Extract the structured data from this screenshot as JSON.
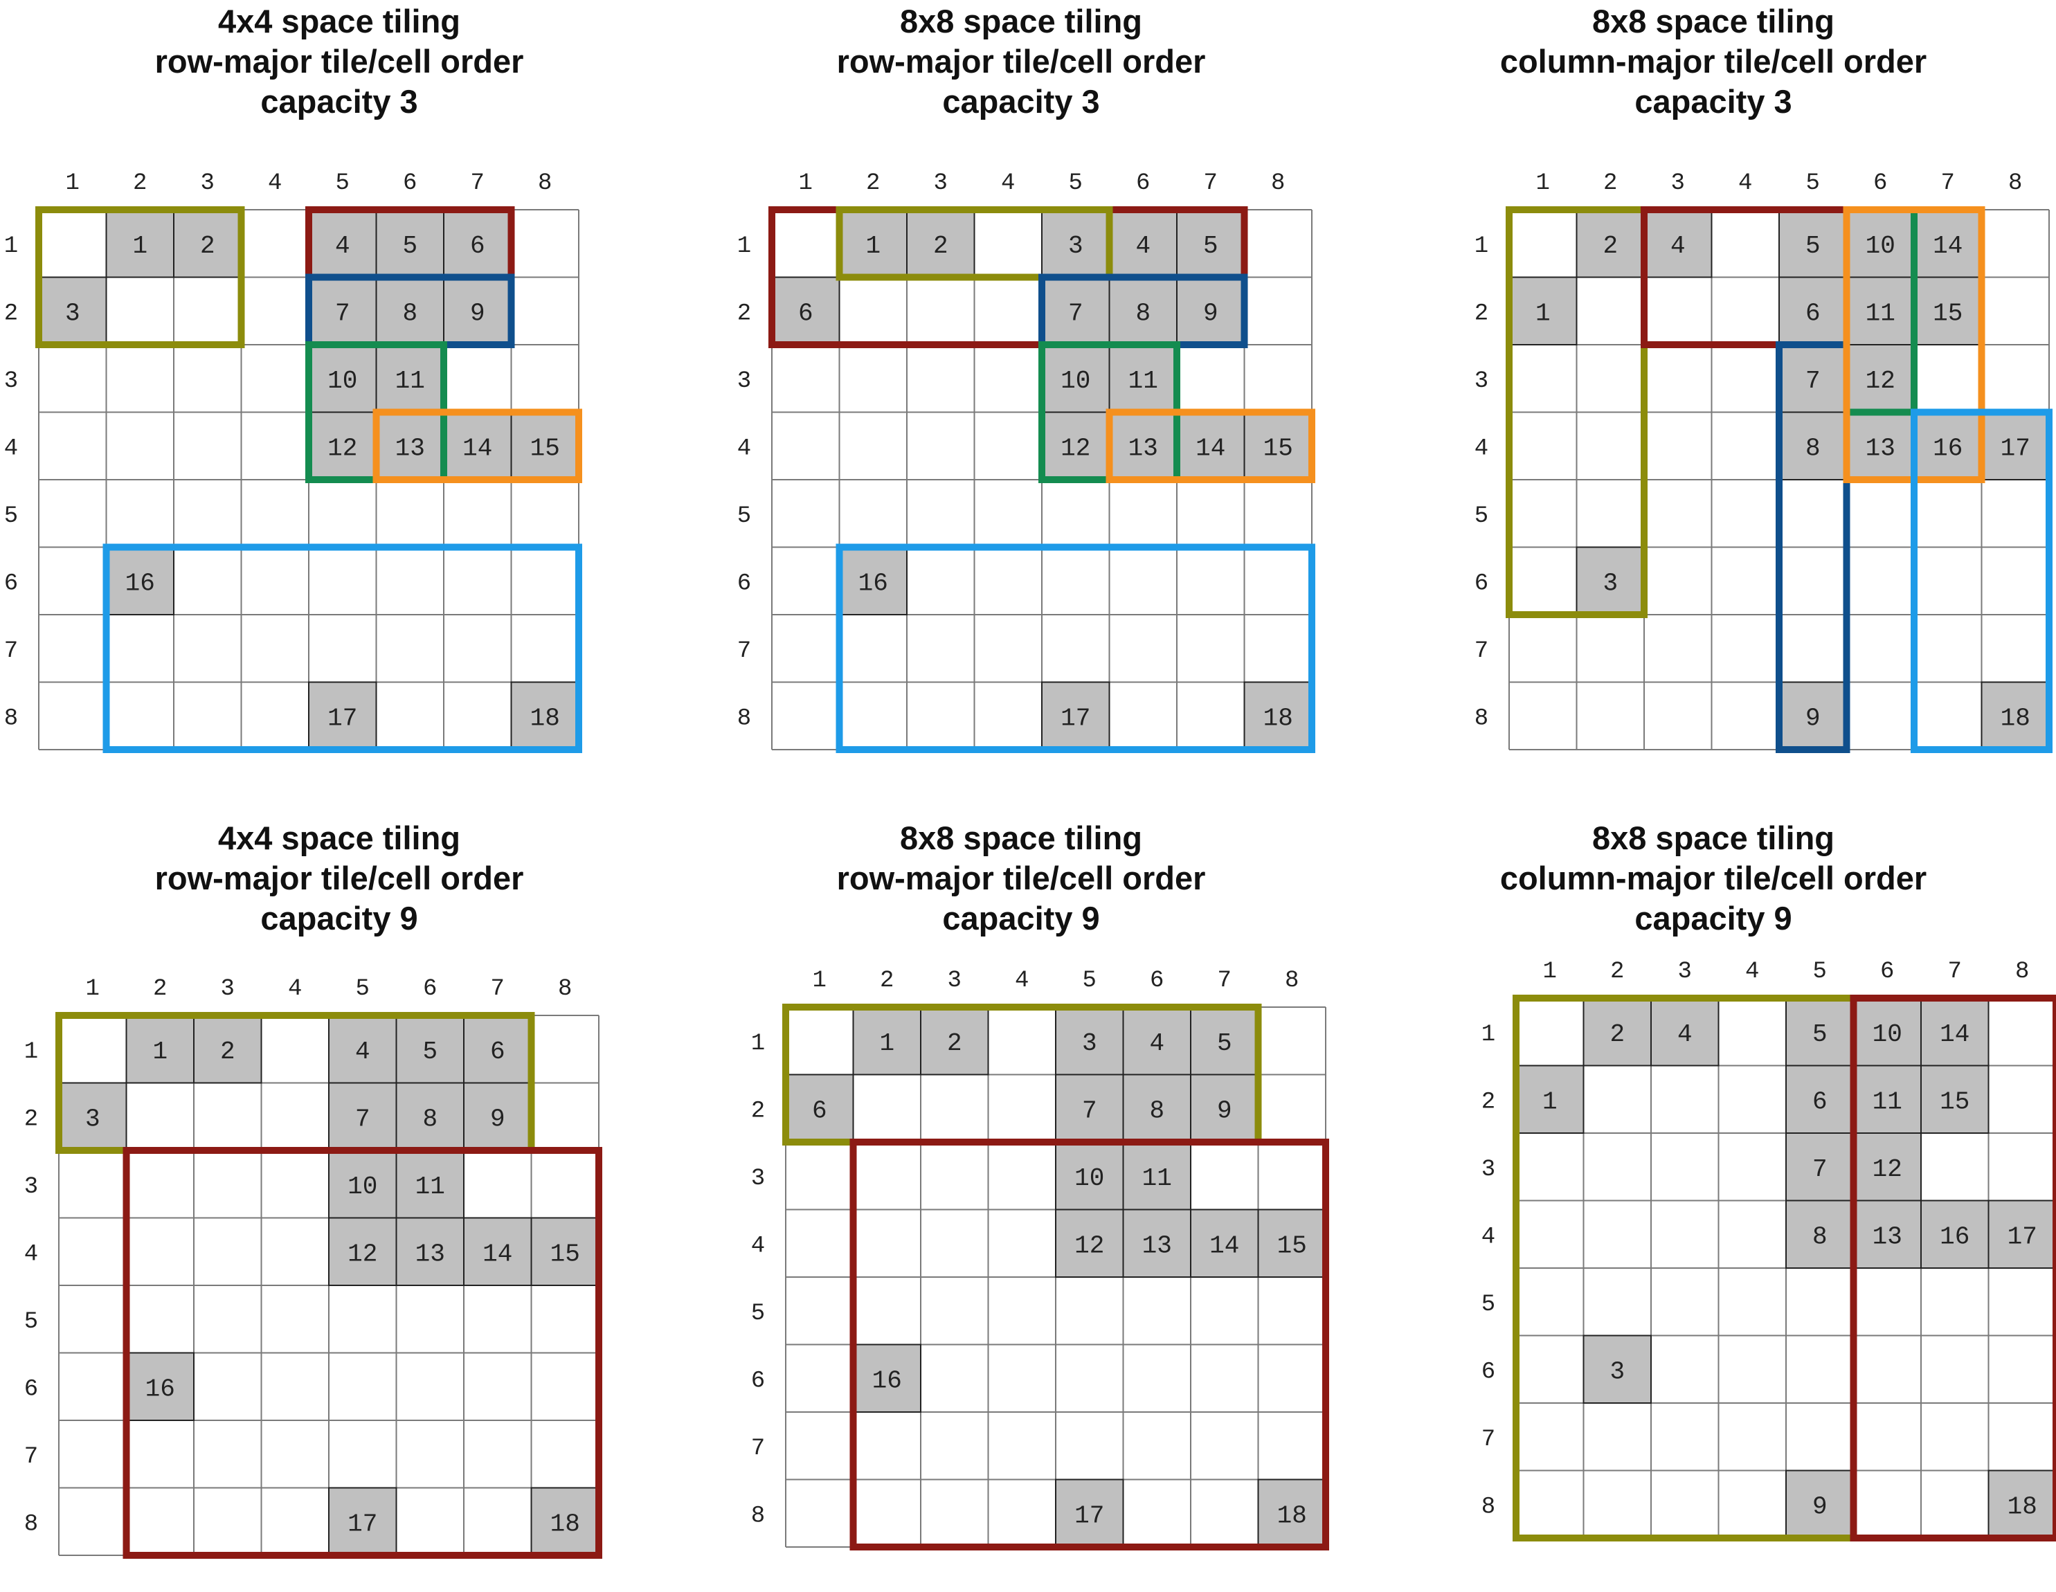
{
  "figure": {
    "colors": {
      "olive": "#8c8c0c",
      "dark_red": "#8c1a14",
      "dark_blue": "#0f4f8c",
      "green": "#148c50",
      "orange": "#f5901e",
      "light_blue": "#1e9be8",
      "cell_fill": "#c0c0c0",
      "grid": "#7a7a7a"
    },
    "panels": [
      {
        "title": [
          "4x4 space tiling",
          "row-major tile/cell order",
          "capacity 3"
        ],
        "col_labels": [
          "1",
          "2",
          "3",
          "4",
          "5",
          "6",
          "7",
          "8"
        ],
        "row_labels": [
          "1",
          "2",
          "3",
          "4",
          "5",
          "6",
          "7",
          "8"
        ],
        "cells": [
          {
            "row": 1,
            "col": 2,
            "label": "1"
          },
          {
            "row": 1,
            "col": 3,
            "label": "2"
          },
          {
            "row": 2,
            "col": 1,
            "label": "3"
          },
          {
            "row": 1,
            "col": 5,
            "label": "4"
          },
          {
            "row": 1,
            "col": 6,
            "label": "5"
          },
          {
            "row": 1,
            "col": 7,
            "label": "6"
          },
          {
            "row": 2,
            "col": 5,
            "label": "7"
          },
          {
            "row": 2,
            "col": 6,
            "label": "8"
          },
          {
            "row": 2,
            "col": 7,
            "label": "9"
          },
          {
            "row": 3,
            "col": 5,
            "label": "10"
          },
          {
            "row": 3,
            "col": 6,
            "label": "11"
          },
          {
            "row": 4,
            "col": 5,
            "label": "12"
          },
          {
            "row": 4,
            "col": 6,
            "label": "13"
          },
          {
            "row": 4,
            "col": 7,
            "label": "14"
          },
          {
            "row": 4,
            "col": 8,
            "label": "15"
          },
          {
            "row": 6,
            "col": 2,
            "label": "16"
          },
          {
            "row": 8,
            "col": 5,
            "label": "17"
          },
          {
            "row": 8,
            "col": 8,
            "label": "18"
          }
        ],
        "tiles": [
          {
            "color": "olive",
            "rows": [
              1,
              2
            ],
            "cols": [
              1,
              3
            ]
          },
          {
            "color": "dark_red",
            "rows": [
              1,
              1
            ],
            "cols": [
              5,
              7
            ]
          },
          {
            "color": "dark_blue",
            "rows": [
              2,
              2
            ],
            "cols": [
              5,
              7
            ]
          },
          {
            "color": "green",
            "rows": [
              3,
              4
            ],
            "cols": [
              5,
              6
            ]
          },
          {
            "color": "orange",
            "rows": [
              4,
              4
            ],
            "cols": [
              6,
              8
            ]
          },
          {
            "color": "light_blue",
            "rows": [
              6,
              8
            ],
            "cols": [
              2,
              8
            ]
          }
        ]
      },
      {
        "title": [
          "8x8 space tiling",
          "row-major tile/cell order",
          "capacity 3"
        ],
        "col_labels": [
          "1",
          "2",
          "3",
          "4",
          "5",
          "6",
          "7",
          "8"
        ],
        "row_labels": [
          "1",
          "2",
          "3",
          "4",
          "5",
          "6",
          "7",
          "8"
        ],
        "cells": [
          {
            "row": 1,
            "col": 2,
            "label": "1"
          },
          {
            "row": 1,
            "col": 3,
            "label": "2"
          },
          {
            "row": 1,
            "col": 5,
            "label": "3"
          },
          {
            "row": 1,
            "col": 6,
            "label": "4"
          },
          {
            "row": 1,
            "col": 7,
            "label": "5"
          },
          {
            "row": 2,
            "col": 1,
            "label": "6"
          },
          {
            "row": 2,
            "col": 5,
            "label": "7"
          },
          {
            "row": 2,
            "col": 6,
            "label": "8"
          },
          {
            "row": 2,
            "col": 7,
            "label": "9"
          },
          {
            "row": 3,
            "col": 5,
            "label": "10"
          },
          {
            "row": 3,
            "col": 6,
            "label": "11"
          },
          {
            "row": 4,
            "col": 5,
            "label": "12"
          },
          {
            "row": 4,
            "col": 6,
            "label": "13"
          },
          {
            "row": 4,
            "col": 7,
            "label": "14"
          },
          {
            "row": 4,
            "col": 8,
            "label": "15"
          },
          {
            "row": 6,
            "col": 2,
            "label": "16"
          },
          {
            "row": 8,
            "col": 5,
            "label": "17"
          },
          {
            "row": 8,
            "col": 8,
            "label": "18"
          }
        ],
        "tiles": [
          {
            "color": "dark_red",
            "rows": [
              1,
              2
            ],
            "cols": [
              1,
              7
            ]
          },
          {
            "color": "olive",
            "rows": [
              1,
              1
            ],
            "cols": [
              2,
              5
            ]
          },
          {
            "color": "dark_blue",
            "rows": [
              2,
              2
            ],
            "cols": [
              5,
              7
            ]
          },
          {
            "color": "green",
            "rows": [
              3,
              4
            ],
            "cols": [
              5,
              6
            ]
          },
          {
            "color": "orange",
            "rows": [
              4,
              4
            ],
            "cols": [
              6,
              8
            ]
          },
          {
            "color": "light_blue",
            "rows": [
              6,
              8
            ],
            "cols": [
              2,
              8
            ]
          }
        ]
      },
      {
        "title": [
          "8x8 space tiling",
          "column-major tile/cell order",
          "capacity 3"
        ],
        "col_labels": [
          "1",
          "2",
          "3",
          "4",
          "5",
          "6",
          "7",
          "8"
        ],
        "row_labels": [
          "1",
          "2",
          "3",
          "4",
          "5",
          "6",
          "7",
          "8"
        ],
        "cells": [
          {
            "row": 2,
            "col": 1,
            "label": "1"
          },
          {
            "row": 1,
            "col": 2,
            "label": "2"
          },
          {
            "row": 6,
            "col": 2,
            "label": "3"
          },
          {
            "row": 1,
            "col": 3,
            "label": "4"
          },
          {
            "row": 1,
            "col": 5,
            "label": "5"
          },
          {
            "row": 2,
            "col": 5,
            "label": "6"
          },
          {
            "row": 3,
            "col": 5,
            "label": "7"
          },
          {
            "row": 4,
            "col": 5,
            "label": "8"
          },
          {
            "row": 8,
            "col": 5,
            "label": "9"
          },
          {
            "row": 1,
            "col": 6,
            "label": "10"
          },
          {
            "row": 2,
            "col": 6,
            "label": "11"
          },
          {
            "row": 3,
            "col": 6,
            "label": "12"
          },
          {
            "row": 4,
            "col": 6,
            "label": "13"
          },
          {
            "row": 1,
            "col": 7,
            "label": "14"
          },
          {
            "row": 2,
            "col": 7,
            "label": "15"
          },
          {
            "row": 4,
            "col": 7,
            "label": "16"
          },
          {
            "row": 4,
            "col": 8,
            "label": "17"
          },
          {
            "row": 8,
            "col": 8,
            "label": "18"
          }
        ],
        "tiles": [
          {
            "color": "olive",
            "rows": [
              1,
              6
            ],
            "cols": [
              1,
              2
            ]
          },
          {
            "color": "dark_red",
            "rows": [
              1,
              2
            ],
            "cols": [
              3,
              5
            ]
          },
          {
            "color": "dark_blue",
            "rows": [
              3,
              8
            ],
            "cols": [
              5,
              5
            ]
          },
          {
            "color": "green",
            "rows": [
              1,
              3
            ],
            "cols": [
              6,
              6
            ]
          },
          {
            "color": "orange",
            "rows": [
              1,
              4
            ],
            "cols": [
              6,
              7
            ]
          },
          {
            "color": "light_blue",
            "rows": [
              4,
              8
            ],
            "cols": [
              7,
              8
            ]
          }
        ]
      },
      {
        "title": [
          "4x4 space tiling",
          "row-major tile/cell order",
          "capacity 9"
        ],
        "col_labels": [
          "1",
          "2",
          "3",
          "4",
          "5",
          "6",
          "7",
          "8"
        ],
        "row_labels": [
          "1",
          "2",
          "3",
          "4",
          "5",
          "6",
          "7",
          "8"
        ],
        "cells": [
          {
            "row": 1,
            "col": 2,
            "label": "1"
          },
          {
            "row": 1,
            "col": 3,
            "label": "2"
          },
          {
            "row": 2,
            "col": 1,
            "label": "3"
          },
          {
            "row": 1,
            "col": 5,
            "label": "4"
          },
          {
            "row": 1,
            "col": 6,
            "label": "5"
          },
          {
            "row": 1,
            "col": 7,
            "label": "6"
          },
          {
            "row": 2,
            "col": 5,
            "label": "7"
          },
          {
            "row": 2,
            "col": 6,
            "label": "8"
          },
          {
            "row": 2,
            "col": 7,
            "label": "9"
          },
          {
            "row": 3,
            "col": 5,
            "label": "10"
          },
          {
            "row": 3,
            "col": 6,
            "label": "11"
          },
          {
            "row": 4,
            "col": 5,
            "label": "12"
          },
          {
            "row": 4,
            "col": 6,
            "label": "13"
          },
          {
            "row": 4,
            "col": 7,
            "label": "14"
          },
          {
            "row": 4,
            "col": 8,
            "label": "15"
          },
          {
            "row": 6,
            "col": 2,
            "label": "16"
          },
          {
            "row": 8,
            "col": 5,
            "label": "17"
          },
          {
            "row": 8,
            "col": 8,
            "label": "18"
          }
        ],
        "tiles": [
          {
            "color": "olive",
            "rows": [
              1,
              2
            ],
            "cols": [
              1,
              7
            ]
          },
          {
            "color": "dark_red",
            "rows": [
              3,
              8
            ],
            "cols": [
              2,
              8
            ]
          }
        ]
      },
      {
        "title": [
          "8x8 space tiling",
          "row-major tile/cell order",
          "capacity 9"
        ],
        "col_labels": [
          "1",
          "2",
          "3",
          "4",
          "5",
          "6",
          "7",
          "8"
        ],
        "row_labels": [
          "1",
          "2",
          "3",
          "4",
          "5",
          "6",
          "7",
          "8"
        ],
        "cells": [
          {
            "row": 1,
            "col": 2,
            "label": "1"
          },
          {
            "row": 1,
            "col": 3,
            "label": "2"
          },
          {
            "row": 1,
            "col": 5,
            "label": "3"
          },
          {
            "row": 1,
            "col": 6,
            "label": "4"
          },
          {
            "row": 1,
            "col": 7,
            "label": "5"
          },
          {
            "row": 2,
            "col": 1,
            "label": "6"
          },
          {
            "row": 2,
            "col": 5,
            "label": "7"
          },
          {
            "row": 2,
            "col": 6,
            "label": "8"
          },
          {
            "row": 2,
            "col": 7,
            "label": "9"
          },
          {
            "row": 3,
            "col": 5,
            "label": "10"
          },
          {
            "row": 3,
            "col": 6,
            "label": "11"
          },
          {
            "row": 4,
            "col": 5,
            "label": "12"
          },
          {
            "row": 4,
            "col": 6,
            "label": "13"
          },
          {
            "row": 4,
            "col": 7,
            "label": "14"
          },
          {
            "row": 4,
            "col": 8,
            "label": "15"
          },
          {
            "row": 6,
            "col": 2,
            "label": "16"
          },
          {
            "row": 8,
            "col": 5,
            "label": "17"
          },
          {
            "row": 8,
            "col": 8,
            "label": "18"
          }
        ],
        "tiles": [
          {
            "color": "olive",
            "rows": [
              1,
              2
            ],
            "cols": [
              1,
              7
            ]
          },
          {
            "color": "dark_red",
            "rows": [
              3,
              8
            ],
            "cols": [
              2,
              8
            ]
          }
        ]
      },
      {
        "title": [
          "8x8 space tiling",
          "column-major tile/cell order",
          "capacity 9"
        ],
        "col_labels": [
          "1",
          "2",
          "3",
          "4",
          "5",
          "6",
          "7",
          "8"
        ],
        "row_labels": [
          "1",
          "2",
          "3",
          "4",
          "5",
          "6",
          "7",
          "8"
        ],
        "cells": [
          {
            "row": 2,
            "col": 1,
            "label": "1"
          },
          {
            "row": 1,
            "col": 2,
            "label": "2"
          },
          {
            "row": 6,
            "col": 2,
            "label": "3"
          },
          {
            "row": 1,
            "col": 3,
            "label": "4"
          },
          {
            "row": 1,
            "col": 5,
            "label": "5"
          },
          {
            "row": 2,
            "col": 5,
            "label": "6"
          },
          {
            "row": 3,
            "col": 5,
            "label": "7"
          },
          {
            "row": 4,
            "col": 5,
            "label": "8"
          },
          {
            "row": 8,
            "col": 5,
            "label": "9"
          },
          {
            "row": 1,
            "col": 6,
            "label": "10"
          },
          {
            "row": 2,
            "col": 6,
            "label": "11"
          },
          {
            "row": 3,
            "col": 6,
            "label": "12"
          },
          {
            "row": 4,
            "col": 6,
            "label": "13"
          },
          {
            "row": 1,
            "col": 7,
            "label": "14"
          },
          {
            "row": 2,
            "col": 7,
            "label": "15"
          },
          {
            "row": 4,
            "col": 7,
            "label": "16"
          },
          {
            "row": 4,
            "col": 8,
            "label": "17"
          },
          {
            "row": 8,
            "col": 8,
            "label": "18"
          }
        ],
        "tiles": [
          {
            "color": "olive",
            "rows": [
              1,
              8
            ],
            "cols": [
              1,
              5
            ]
          },
          {
            "color": "dark_red",
            "rows": [
              1,
              8
            ],
            "cols": [
              6,
              8
            ]
          }
        ]
      }
    ]
  }
}
